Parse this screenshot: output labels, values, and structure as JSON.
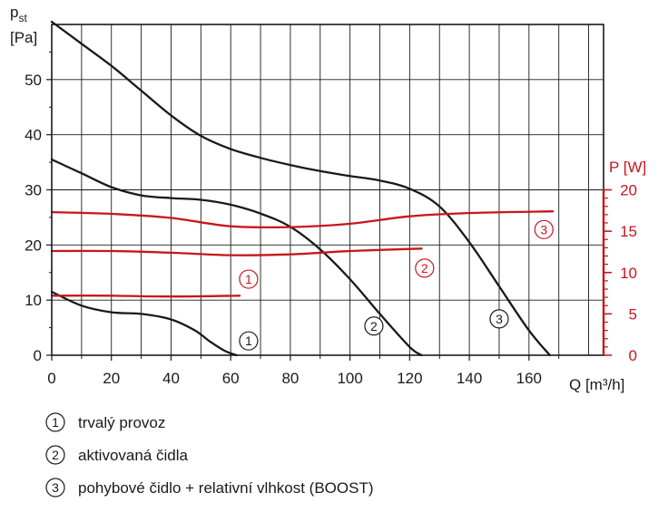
{
  "chart_data": {
    "type": "line",
    "y_axis": {
      "label": "p",
      "subscript": "st",
      "unit": "[Pa]",
      "ylim": [
        0,
        60
      ],
      "ticks": [
        0,
        10,
        20,
        30,
        40,
        50
      ]
    },
    "x_axis": {
      "label": "Q [m³/h]",
      "xlim": [
        0,
        185
      ],
      "ticks": [
        0,
        20,
        40,
        60,
        80,
        100,
        120,
        140,
        160
      ]
    },
    "y2_axis": {
      "label": "P [W]",
      "ylim": [
        0,
        40
      ],
      "ticks": [
        0,
        5,
        10,
        15,
        20
      ]
    },
    "grid": true,
    "pressure_series": [
      {
        "marker": "1",
        "color": "#1a1a1a",
        "x": [
          0,
          10,
          20,
          30,
          40,
          48,
          53,
          58,
          62
        ],
        "y": [
          11.5,
          9,
          7.8,
          7.5,
          6.5,
          4.5,
          2.5,
          0.8,
          0
        ]
      },
      {
        "marker": "2",
        "color": "#1a1a1a",
        "x": [
          0,
          10,
          20,
          30,
          40,
          50,
          60,
          70,
          80,
          90,
          100,
          110,
          120,
          124
        ],
        "y": [
          35.5,
          33,
          30.5,
          29,
          28.5,
          28.2,
          27.3,
          25.7,
          23.3,
          19.2,
          13.8,
          7.5,
          1.5,
          0
        ]
      },
      {
        "marker": "3",
        "color": "#1a1a1a",
        "x": [
          0,
          10,
          20,
          30,
          40,
          50,
          60,
          70,
          80,
          90,
          100,
          110,
          120,
          130,
          140,
          150,
          160,
          167
        ],
        "y": [
          60.5,
          56.5,
          52.5,
          48,
          43.5,
          39.8,
          37.4,
          35.8,
          34.5,
          33.4,
          32.5,
          31.7,
          30.2,
          27,
          20.5,
          12.5,
          4.5,
          0
        ]
      }
    ],
    "power_series": [
      {
        "marker": "1",
        "color": "#c8161d",
        "x": [
          0,
          20,
          40,
          63
        ],
        "y": [
          7.2,
          7.2,
          7.1,
          7.2
        ]
      },
      {
        "marker": "2",
        "color": "#c8161d",
        "x": [
          0,
          20,
          40,
          60,
          80,
          100,
          124
        ],
        "y": [
          12.6,
          12.6,
          12.4,
          12.1,
          12.2,
          12.6,
          12.9
        ]
      },
      {
        "marker": "3",
        "color": "#c8161d",
        "x": [
          0,
          20,
          40,
          60,
          80,
          100,
          120,
          140,
          168
        ],
        "y": [
          17.3,
          17.1,
          16.6,
          15.6,
          15.5,
          15.9,
          16.8,
          17.2,
          17.4
        ]
      }
    ],
    "curve_markers": [
      {
        "label": "1",
        "color": "#1a1a1a",
        "x": 66,
        "y": 2.6
      },
      {
        "label": "2",
        "color": "#1a1a1a",
        "x": 108,
        "y": 5.3
      },
      {
        "label": "3",
        "color": "#1a1a1a",
        "x": 150,
        "y": 6.6
      },
      {
        "label": "1",
        "color": "#c8161d",
        "x": 66,
        "y": 13.8
      },
      {
        "label": "2",
        "color": "#c8161d",
        "x": 125,
        "y": 15.8
      },
      {
        "label": "3",
        "color": "#c8161d",
        "x": 165,
        "y": 22.8
      }
    ],
    "legend": [
      {
        "label": "1",
        "text": "trvalý provoz"
      },
      {
        "label": "2",
        "text": "aktivovaná čidla"
      },
      {
        "label": "3",
        "text": "pohybové čidlo + relativní vlhkost (BOOST)"
      }
    ]
  },
  "colors": {
    "black": "#1a1a1a",
    "red": "#c8161d",
    "grid": "#1a1a1a"
  }
}
